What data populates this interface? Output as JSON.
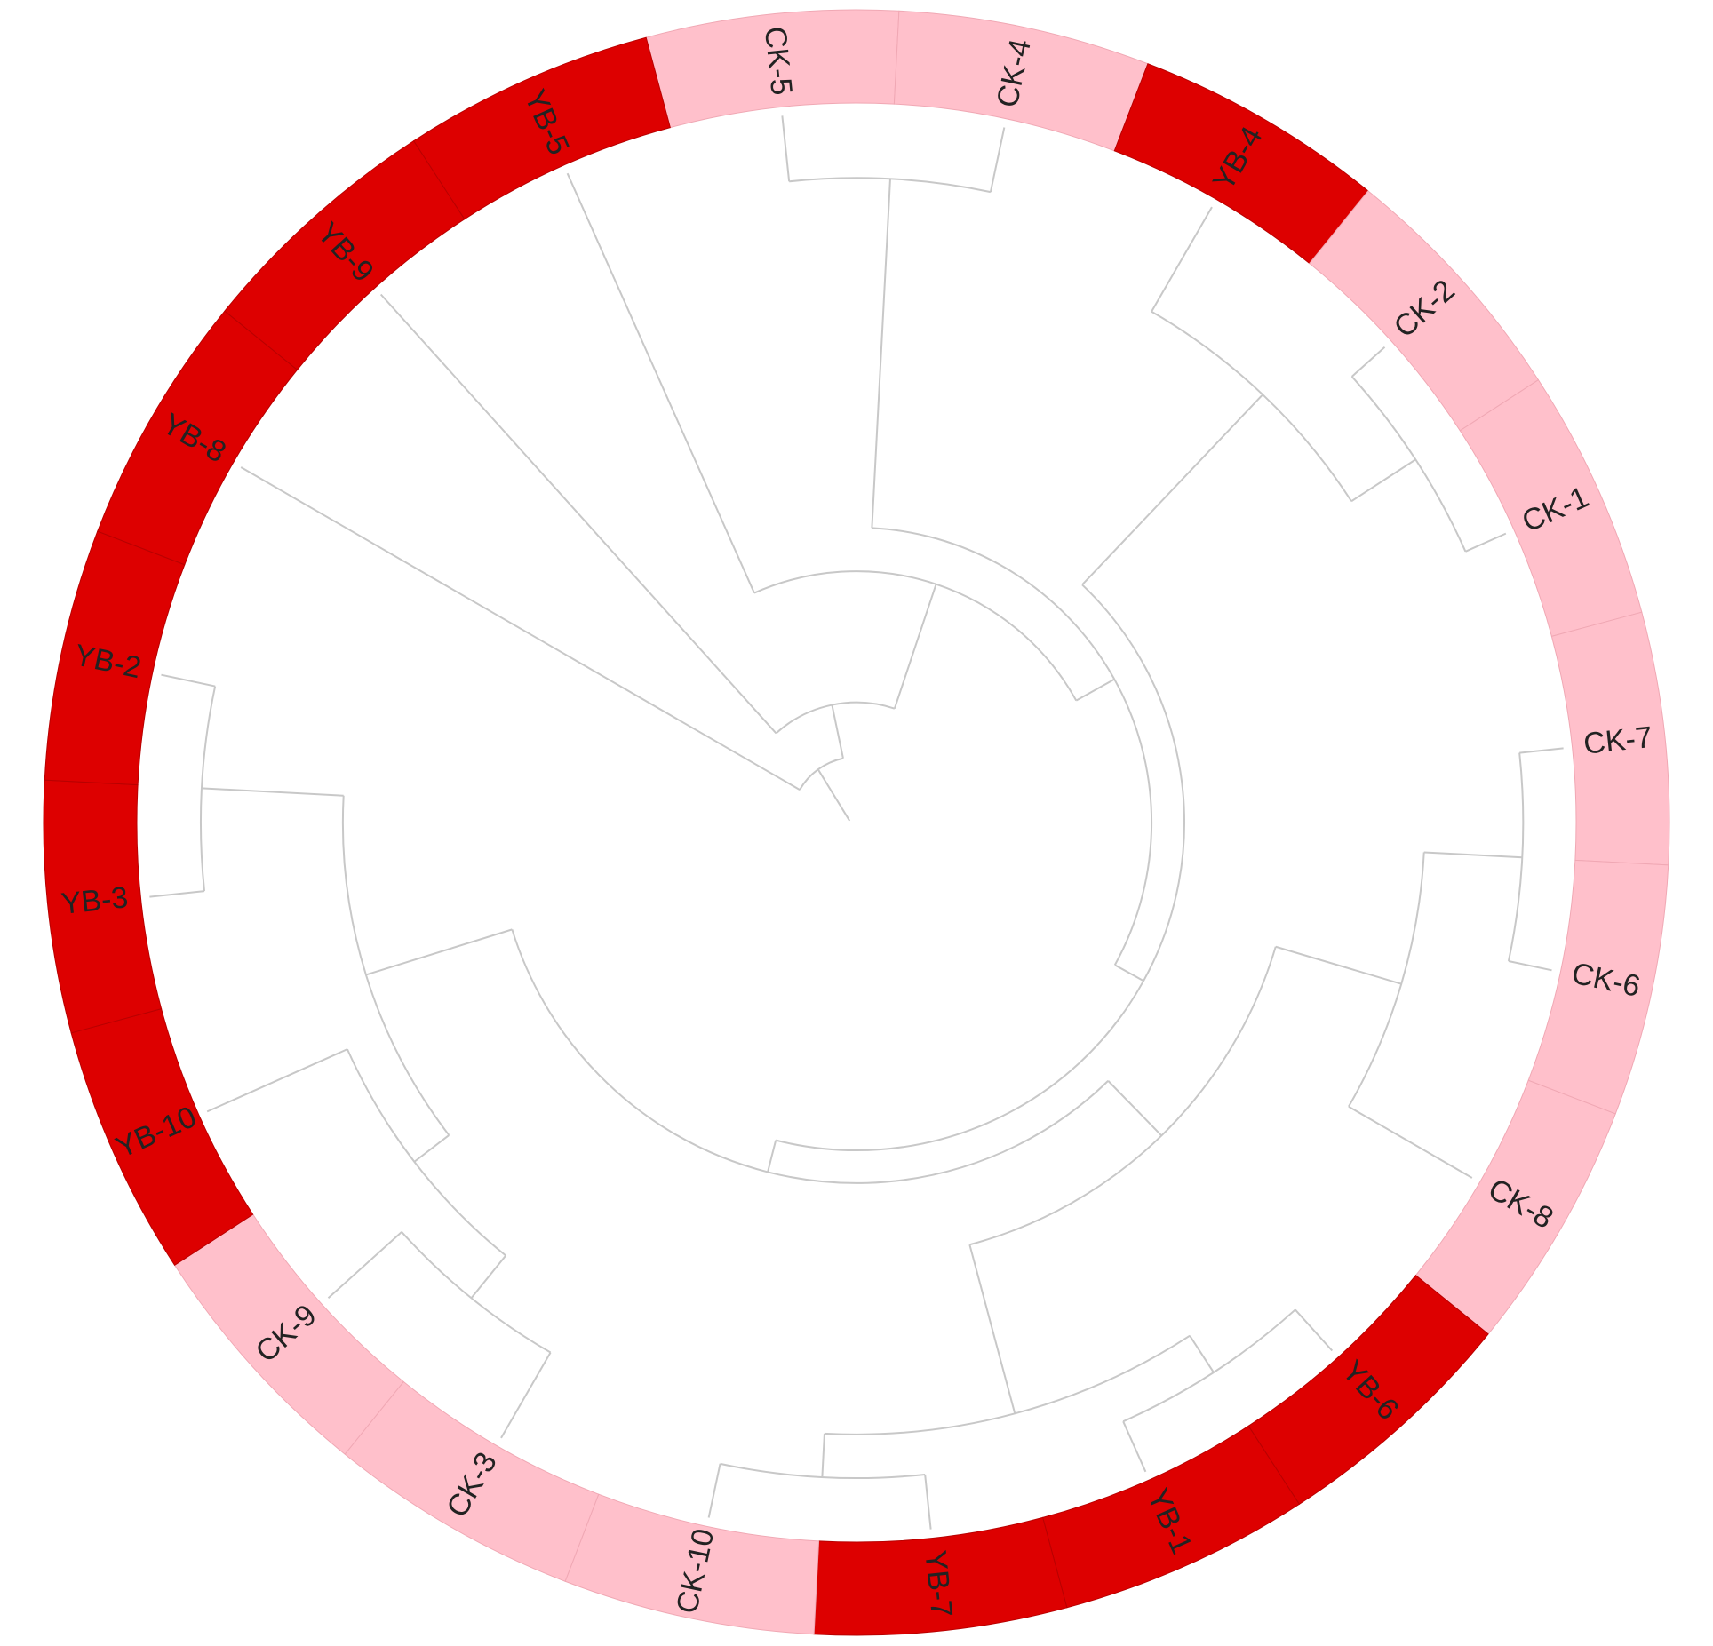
{
  "leaves": [
    {
      "label": "CK-5",
      "color": "#ffc0cb"
    },
    {
      "label": "CK-4",
      "color": "#ffc0cb"
    },
    {
      "label": "YB-4",
      "color": "#dd0000"
    },
    {
      "label": "CK-2",
      "color": "#ffc0cb"
    },
    {
      "label": "CK-1",
      "color": "#ffc0cb"
    },
    {
      "label": "CK-7",
      "color": "#ffc0cb"
    },
    {
      "label": "CK-6",
      "color": "#ffc0cb"
    },
    {
      "label": "CK-8",
      "color": "#ffc0cb"
    },
    {
      "label": "YB-6",
      "color": "#dd0000"
    },
    {
      "label": "YB-1",
      "color": "#dd0000"
    },
    {
      "label": "YB-7",
      "color": "#dd0000"
    },
    {
      "label": "CK-10",
      "color": "#ffc0cb"
    },
    {
      "label": "CK-3",
      "color": "#ffc0cb"
    },
    {
      "label": "CK-9",
      "color": "#ffc0cb"
    },
    {
      "label": "YB-10",
      "color": "#dd0000"
    },
    {
      "label": "YB-3",
      "color": "#dd0000"
    },
    {
      "label": "YB-2",
      "color": "#dd0000"
    },
    {
      "label": "YB-8",
      "color": "#dd0000"
    },
    {
      "label": "YB-9",
      "color": "#dd0000"
    },
    {
      "label": "YB-5",
      "color": "#dd0000"
    }
  ]
}
